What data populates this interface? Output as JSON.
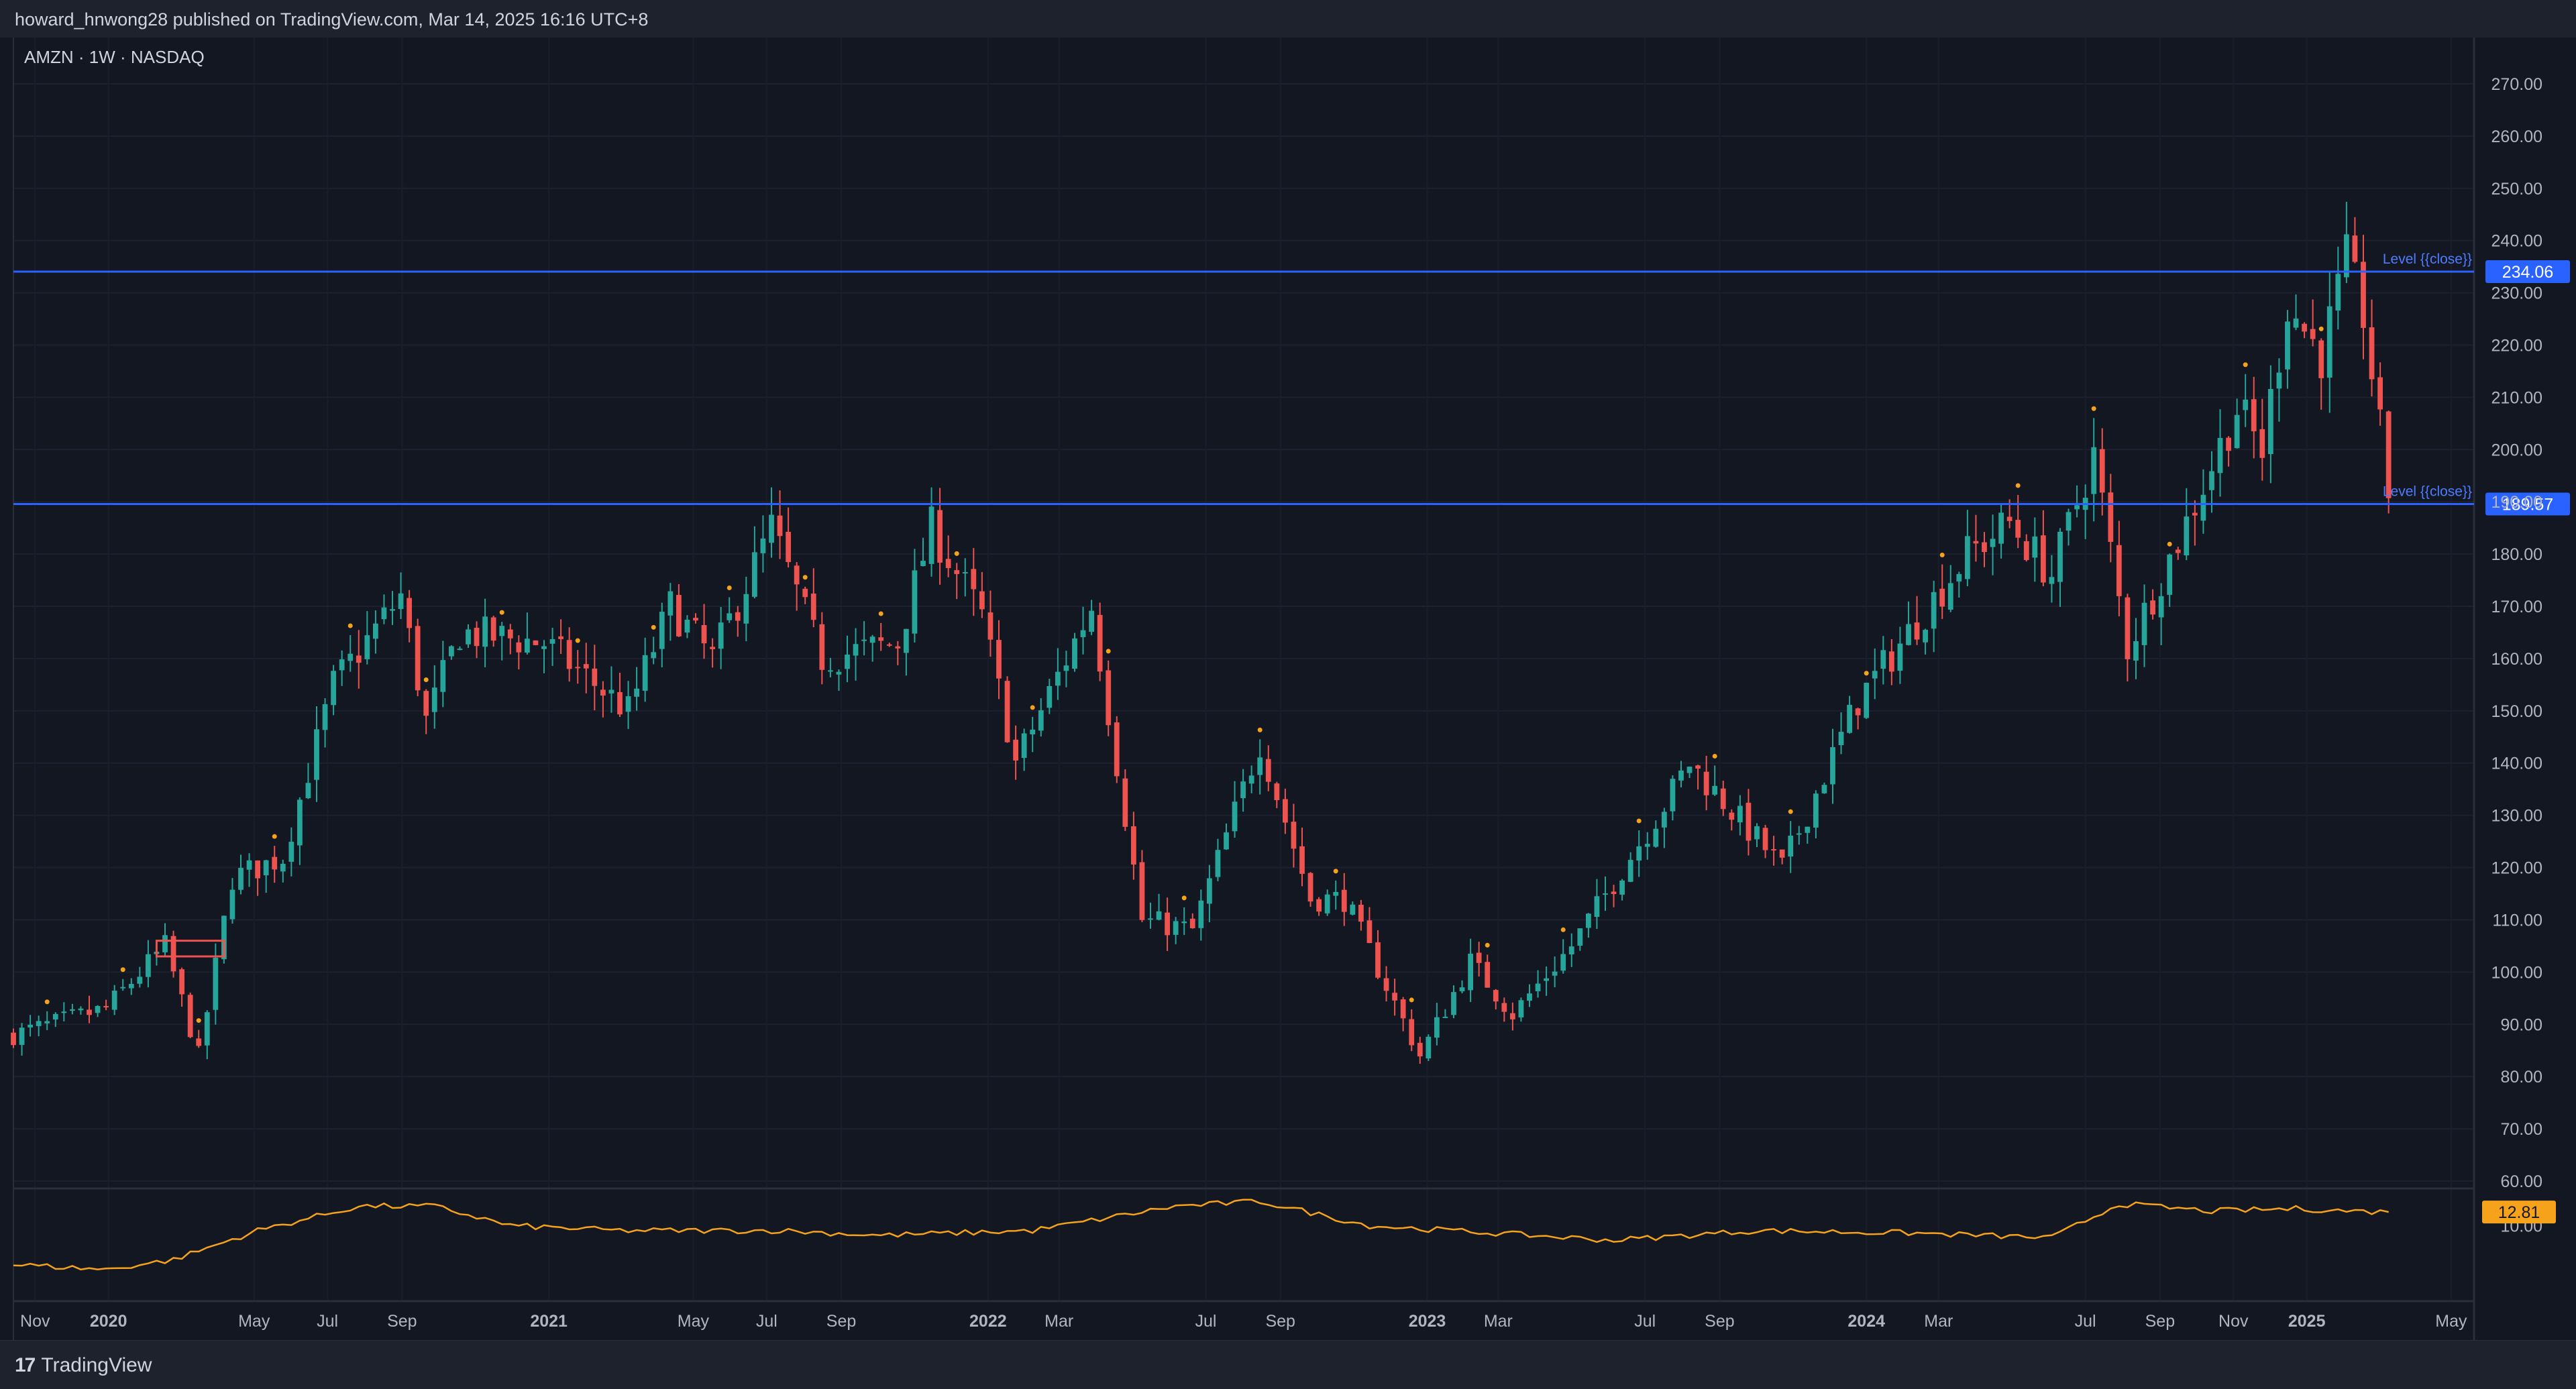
{
  "header": {
    "published": "howard_hnwong28 published on TradingView.com, Mar 14, 2025 16:16 UTC+8"
  },
  "footer": {
    "brand_icon": "17",
    "brand": "TradingView"
  },
  "colors": {
    "background": "#131722",
    "up": "#26a69a",
    "down": "#ef5350",
    "level": "#2962ff",
    "indicator": "#f7a21b",
    "marker": "#f7a21b"
  },
  "chart_data": {
    "type": "candlestick",
    "symbol_label": "AMZN · 1W · NASDAQ",
    "ylim": [
      60,
      275
    ],
    "y_ticks": [
      270,
      260,
      250,
      240,
      230,
      220,
      210,
      200,
      190,
      180,
      170,
      160,
      150,
      140,
      130,
      120,
      110,
      100,
      90,
      80,
      70,
      60
    ],
    "x_range": [
      "2019-10-14",
      "2025-05-20"
    ],
    "x_ticks": [
      {
        "label": "Nov",
        "date": "2019-11-01",
        "bold": false
      },
      {
        "label": "2020",
        "date": "2020-01-01",
        "bold": true
      },
      {
        "label": "May",
        "date": "2020-05-01",
        "bold": false
      },
      {
        "label": "Jul",
        "date": "2020-07-01",
        "bold": false
      },
      {
        "label": "Sep",
        "date": "2020-09-01",
        "bold": false
      },
      {
        "label": "2021",
        "date": "2021-01-01",
        "bold": true
      },
      {
        "label": "May",
        "date": "2021-05-01",
        "bold": false
      },
      {
        "label": "Jul",
        "date": "2021-07-01",
        "bold": false
      },
      {
        "label": "Sep",
        "date": "2021-09-01",
        "bold": false
      },
      {
        "label": "2022",
        "date": "2022-01-01",
        "bold": true
      },
      {
        "label": "Mar",
        "date": "2022-03-01",
        "bold": false
      },
      {
        "label": "Jul",
        "date": "2022-07-01",
        "bold": false
      },
      {
        "label": "Sep",
        "date": "2022-09-01",
        "bold": false
      },
      {
        "label": "2023",
        "date": "2023-01-01",
        "bold": true
      },
      {
        "label": "Mar",
        "date": "2023-03-01",
        "bold": false
      },
      {
        "label": "Jul",
        "date": "2023-07-01",
        "bold": false
      },
      {
        "label": "Sep",
        "date": "2023-09-01",
        "bold": false
      },
      {
        "label": "2024",
        "date": "2024-01-01",
        "bold": true
      },
      {
        "label": "Mar",
        "date": "2024-03-01",
        "bold": false
      },
      {
        "label": "Jul",
        "date": "2024-07-01",
        "bold": false
      },
      {
        "label": "Sep",
        "date": "2024-09-01",
        "bold": false
      },
      {
        "label": "Nov",
        "date": "2024-11-01",
        "bold": false
      },
      {
        "label": "2025",
        "date": "2025-01-01",
        "bold": true
      },
      {
        "label": "May",
        "date": "2025-05-01",
        "bold": false
      }
    ],
    "levels": [
      {
        "label": "Level {{close}}",
        "value": 234.06,
        "price_label": "234.06"
      },
      {
        "label": "Level {{close}}",
        "value": 189.57,
        "price_label": "189.57"
      }
    ],
    "anchors": [
      {
        "date": "2019-10-14",
        "close": 88
      },
      {
        "date": "2019-12-30",
        "close": 93
      },
      {
        "date": "2020-02-17",
        "close": 105
      },
      {
        "date": "2020-03-16",
        "close": 84
      },
      {
        "date": "2020-04-13",
        "close": 118
      },
      {
        "date": "2020-05-25",
        "close": 122
      },
      {
        "date": "2020-07-06",
        "close": 155
      },
      {
        "date": "2020-08-31",
        "close": 172
      },
      {
        "date": "2020-09-21",
        "close": 148
      },
      {
        "date": "2020-10-19",
        "close": 165
      },
      {
        "date": "2020-12-28",
        "close": 163
      },
      {
        "date": "2021-03-08",
        "close": 150
      },
      {
        "date": "2021-04-12",
        "close": 170
      },
      {
        "date": "2021-05-17",
        "close": 160
      },
      {
        "date": "2021-07-05",
        "close": 185
      },
      {
        "date": "2021-08-16",
        "close": 160
      },
      {
        "date": "2021-10-18",
        "close": 163
      },
      {
        "date": "2021-11-15",
        "close": 185
      },
      {
        "date": "2021-12-27",
        "close": 168
      },
      {
        "date": "2022-01-24",
        "close": 140
      },
      {
        "date": "2022-03-28",
        "close": 170
      },
      {
        "date": "2022-05-09",
        "close": 110
      },
      {
        "date": "2022-06-20",
        "close": 108
      },
      {
        "date": "2022-08-15",
        "close": 144
      },
      {
        "date": "2022-09-26",
        "close": 114
      },
      {
        "date": "2022-10-24",
        "close": 114
      },
      {
        "date": "2022-12-26",
        "close": 84
      },
      {
        "date": "2023-02-06",
        "close": 102
      },
      {
        "date": "2023-03-13",
        "close": 92
      },
      {
        "date": "2023-05-01",
        "close": 105
      },
      {
        "date": "2023-07-17",
        "close": 132
      },
      {
        "date": "2023-08-07",
        "close": 140
      },
      {
        "date": "2023-10-23",
        "close": 120
      },
      {
        "date": "2023-12-25",
        "close": 152
      },
      {
        "date": "2024-03-25",
        "close": 180
      },
      {
        "date": "2024-04-29",
        "close": 186
      },
      {
        "date": "2024-06-03",
        "close": 176
      },
      {
        "date": "2024-07-08",
        "close": 199
      },
      {
        "date": "2024-08-05",
        "close": 162
      },
      {
        "date": "2024-09-23",
        "close": 186
      },
      {
        "date": "2024-11-04",
        "close": 208
      },
      {
        "date": "2024-11-25",
        "close": 200
      },
      {
        "date": "2024-12-16",
        "close": 228
      },
      {
        "date": "2025-01-13",
        "close": 218
      },
      {
        "date": "2025-02-03",
        "close": 236
      },
      {
        "date": "2025-02-17",
        "close": 226
      },
      {
        "date": "2025-03-10",
        "close": 192
      }
    ],
    "indicator": {
      "value_label": "12.81",
      "tick_label": "10.00",
      "anchors": [
        {
          "date": "2019-10-14",
          "v": 2.0
        },
        {
          "date": "2019-12-30",
          "v": 1.0
        },
        {
          "date": "2020-02-24",
          "v": 3.0
        },
        {
          "date": "2020-05-04",
          "v": 9.0
        },
        {
          "date": "2020-07-27",
          "v": 14.0
        },
        {
          "date": "2020-09-28",
          "v": 14.0
        },
        {
          "date": "2020-11-30",
          "v": 10.0
        },
        {
          "date": "2021-03-01",
          "v": 9.0
        },
        {
          "date": "2021-07-12",
          "v": 9.0
        },
        {
          "date": "2021-10-04",
          "v": 8.0
        },
        {
          "date": "2022-02-07",
          "v": 9.0
        },
        {
          "date": "2022-06-06",
          "v": 14.0
        },
        {
          "date": "2022-08-15",
          "v": 15.0
        },
        {
          "date": "2022-11-14",
          "v": 10.0
        },
        {
          "date": "2023-06-05",
          "v": 7.0
        },
        {
          "date": "2023-10-02",
          "v": 9.0
        },
        {
          "date": "2024-02-05",
          "v": 8.5
        },
        {
          "date": "2024-06-03",
          "v": 7.5
        },
        {
          "date": "2024-07-29",
          "v": 14.5
        },
        {
          "date": "2024-10-14",
          "v": 13.0
        },
        {
          "date": "2024-12-23",
          "v": 13.5
        },
        {
          "date": "2025-02-10",
          "v": 13.0
        },
        {
          "date": "2025-03-10",
          "v": 12.81
        }
      ]
    }
  }
}
